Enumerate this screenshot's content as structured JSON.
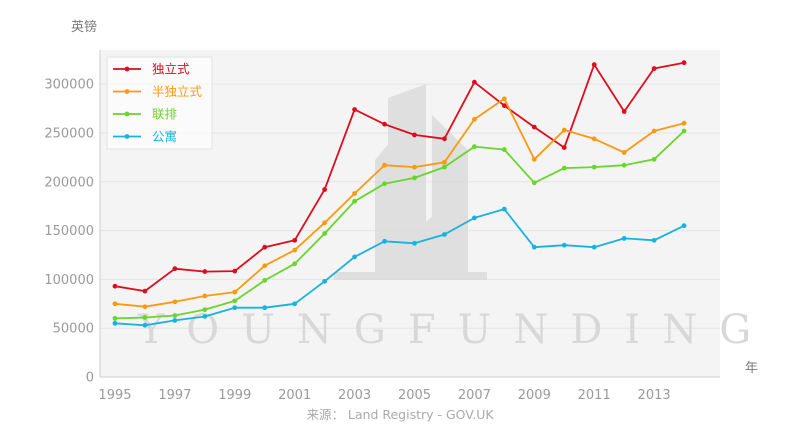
{
  "y_unit_label": "英镑",
  "x_unit_label": "年",
  "source": "来源： Land Registry - GOV.UK",
  "watermark": "YOUNGFUNDING",
  "chart_data": {
    "type": "line",
    "x": [
      1995,
      1996,
      1997,
      1998,
      1999,
      2000,
      2001,
      2002,
      2003,
      2004,
      2005,
      2006,
      2007,
      2008,
      2009,
      2010,
      2011,
      2012,
      2013,
      2014
    ],
    "x_tick_labels": [
      "1995",
      "1997",
      "1999",
      "2001",
      "2003",
      "2005",
      "2007",
      "2009",
      "2011",
      "2013"
    ],
    "y_tick_labels": [
      "0",
      "50000",
      "100000",
      "150000",
      "200000",
      "250000",
      "300000"
    ],
    "ylim": [
      0,
      335000
    ],
    "xlim": [
      1994.5,
      2015.2
    ],
    "grid": true,
    "legend_position": "top-left",
    "series": [
      {
        "name": "独立式",
        "color": "#dd0c1e",
        "values": [
          93000,
          88000,
          111000,
          108000,
          108500,
          133000,
          140000,
          192000,
          274000,
          259000,
          248000,
          244000,
          302000,
          278000,
          256000,
          235000,
          320000,
          272000,
          316000,
          322000
        ]
      },
      {
        "name": "半独立式",
        "color": "#fb9a10",
        "values": [
          75000,
          72000,
          77000,
          83000,
          87000,
          114000,
          130000,
          158000,
          188000,
          217000,
          215000,
          220000,
          264000,
          285000,
          223000,
          253000,
          244000,
          230000,
          252000,
          260000
        ]
      },
      {
        "name": "联排",
        "color": "#6ad52b",
        "values": [
          60000,
          61000,
          63000,
          69000,
          78000,
          99000,
          116000,
          147000,
          180000,
          198000,
          204000,
          215000,
          236000,
          233000,
          199000,
          214000,
          215000,
          217000,
          223000,
          252000
        ]
      },
      {
        "name": "公寓",
        "color": "#18b2e0",
        "values": [
          55000,
          53000,
          58000,
          62000,
          71000,
          71000,
          75000,
          98000,
          123000,
          139000,
          137000,
          146000,
          163000,
          172000,
          133000,
          135000,
          133000,
          142000,
          140000,
          155000
        ]
      }
    ]
  }
}
